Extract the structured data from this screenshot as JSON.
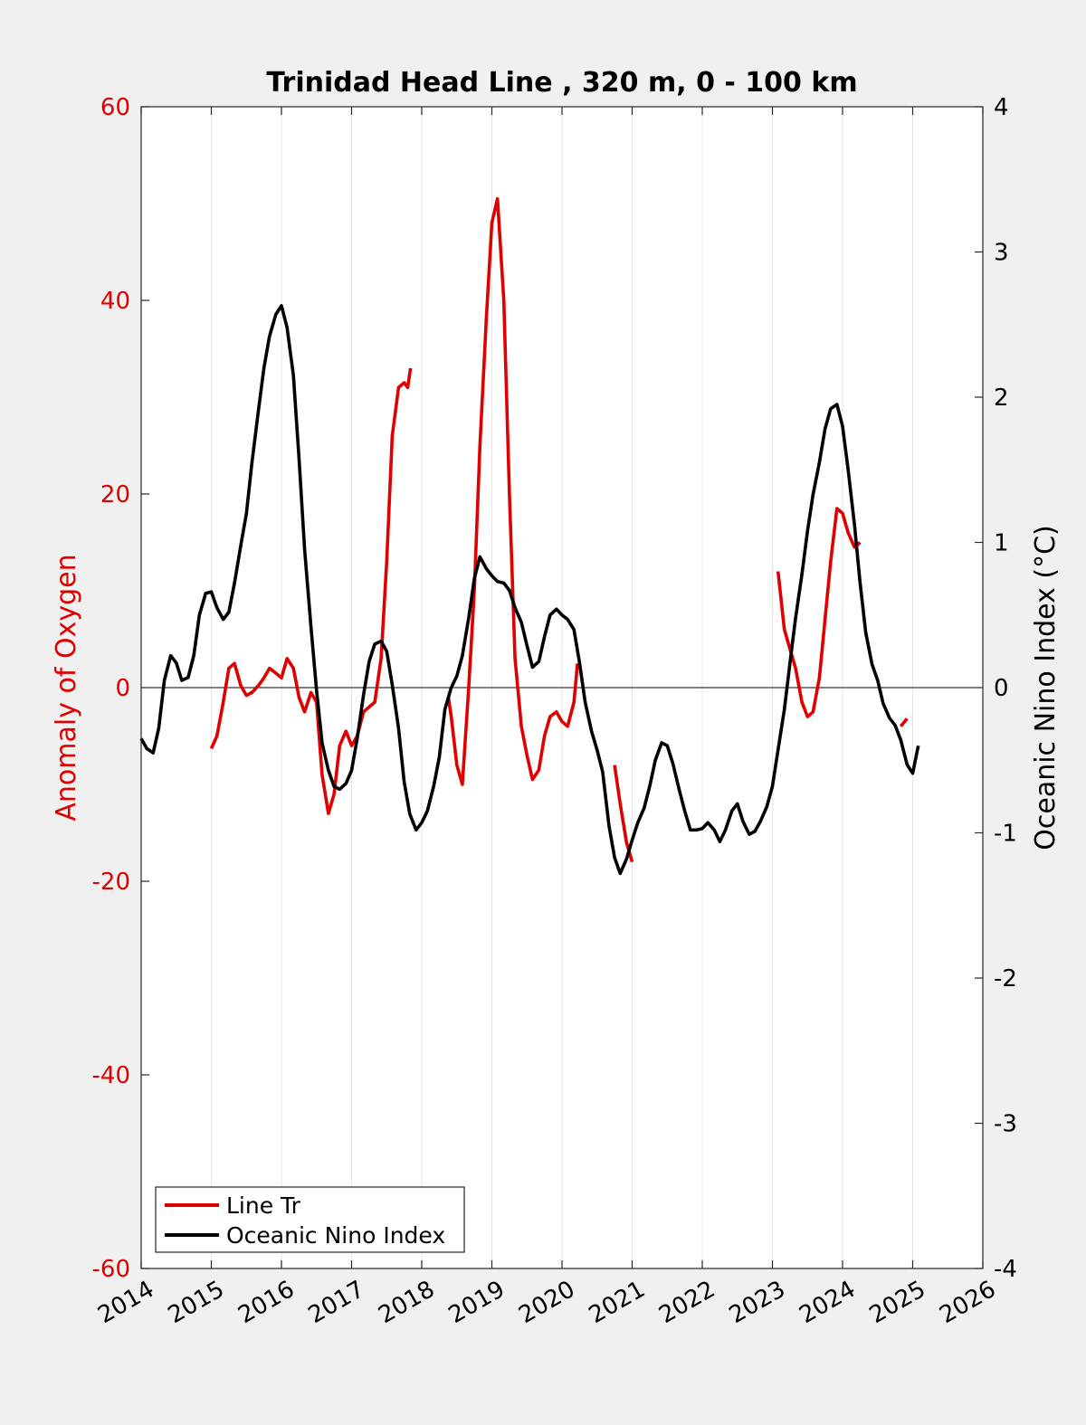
{
  "chart_data": {
    "type": "line",
    "title": "Trinidad Head Line , 320 m, 0 - 100 km",
    "xlabel": "",
    "ylabel_left": "Anomaly of Oxygen",
    "ylabel_right": "Oceanic Nino Index (°C)",
    "xlim": [
      2014,
      2026
    ],
    "ylim_left": [
      -60,
      60
    ],
    "ylim_right": [
      -4,
      4
    ],
    "x_ticks": [
      "2014",
      "2015",
      "2016",
      "2017",
      "2018",
      "2019",
      "2020",
      "2021",
      "2022",
      "2023",
      "2024",
      "2025",
      "2026"
    ],
    "y_ticks_left": [
      "-60",
      "-40",
      "-20",
      "0",
      "20",
      "40",
      "60"
    ],
    "y_ticks_right": [
      "-4",
      "-3",
      "-2",
      "-1",
      "0",
      "1",
      "2",
      "3",
      "4"
    ],
    "grid": "vertical",
    "legend_position": "bottom-left",
    "zero_line": true,
    "colors": {
      "line_tr": "#e00000",
      "oni": "#000000",
      "left_axis": "#e00000"
    },
    "series": [
      {
        "name": "Line Tr",
        "axis": "left",
        "segments": [
          [
            [
              2015.0,
              -6.3
            ],
            [
              2015.08,
              -5.0
            ],
            [
              2015.17,
              -1.5
            ],
            [
              2015.25,
              2.0
            ],
            [
              2015.33,
              2.5
            ],
            [
              2015.42,
              0.2
            ],
            [
              2015.5,
              -0.8
            ],
            [
              2015.58,
              -0.5
            ],
            [
              2015.67,
              0.2
            ],
            [
              2015.75,
              1.0
            ],
            [
              2015.83,
              2.0
            ],
            [
              2015.92,
              1.5
            ],
            [
              2016.0,
              1.0
            ],
            [
              2016.08,
              3.0
            ],
            [
              2016.17,
              2.0
            ],
            [
              2016.25,
              -1.0
            ],
            [
              2016.33,
              -2.5
            ],
            [
              2016.42,
              -0.5
            ],
            [
              2016.5,
              -1.5
            ],
            [
              2016.58,
              -9.0
            ],
            [
              2016.67,
              -13.0
            ],
            [
              2016.75,
              -11.0
            ],
            [
              2016.83,
              -6.0
            ],
            [
              2016.92,
              -4.5
            ],
            [
              2017.0,
              -6.0
            ],
            [
              2017.08,
              -5.0
            ],
            [
              2017.17,
              -2.5
            ],
            [
              2017.25,
              -2.0
            ],
            [
              2017.33,
              -1.5
            ],
            [
              2017.42,
              3.0
            ],
            [
              2017.5,
              13.0
            ],
            [
              2017.58,
              26.0
            ],
            [
              2017.67,
              31.0
            ],
            [
              2017.75,
              31.5
            ],
            [
              2017.8,
              31.0
            ],
            [
              2017.84,
              33.0
            ]
          ],
          [
            [
              2018.38,
              -1.0
            ],
            [
              2018.42,
              -3.0
            ],
            [
              2018.5,
              -8.0
            ],
            [
              2018.58,
              -10.0
            ],
            [
              2018.67,
              0.0
            ],
            [
              2018.75,
              10.0
            ],
            [
              2018.83,
              25.0
            ],
            [
              2018.92,
              38.0
            ],
            [
              2019.0,
              48.0
            ],
            [
              2019.08,
              50.5
            ],
            [
              2019.17,
              40.0
            ],
            [
              2019.25,
              20.0
            ],
            [
              2019.33,
              3.0
            ],
            [
              2019.42,
              -4.0
            ],
            [
              2019.5,
              -7.0
            ],
            [
              2019.58,
              -9.5
            ],
            [
              2019.67,
              -8.5
            ],
            [
              2019.75,
              -5.0
            ],
            [
              2019.83,
              -3.0
            ],
            [
              2019.92,
              -2.5
            ],
            [
              2020.0,
              -3.5
            ],
            [
              2020.08,
              -4.0
            ],
            [
              2020.17,
              -1.5
            ],
            [
              2020.22,
              2.5
            ]
          ],
          [
            [
              2020.75,
              -8.0
            ],
            [
              2020.83,
              -12.0
            ],
            [
              2020.92,
              -16.0
            ],
            [
              2021.0,
              -18.0
            ]
          ],
          [
            [
              2023.08,
              12.0
            ],
            [
              2023.17,
              6.0
            ],
            [
              2023.25,
              4.0
            ],
            [
              2023.33,
              2.0
            ],
            [
              2023.42,
              -1.5
            ],
            [
              2023.5,
              -3.0
            ],
            [
              2023.58,
              -2.5
            ],
            [
              2023.67,
              1.0
            ],
            [
              2023.75,
              7.0
            ],
            [
              2023.83,
              13.0
            ],
            [
              2023.92,
              18.5
            ],
            [
              2024.0,
              18.0
            ],
            [
              2024.08,
              16.0
            ],
            [
              2024.17,
              14.5
            ],
            [
              2024.25,
              15.0
            ]
          ],
          [
            [
              2024.83,
              -4.0
            ],
            [
              2024.92,
              -3.2
            ]
          ]
        ]
      },
      {
        "name": "Oceanic Nino Index",
        "axis": "right",
        "segments": [
          [
            [
              2014.0,
              -0.35
            ],
            [
              2014.08,
              -0.42
            ],
            [
              2014.17,
              -0.45
            ],
            [
              2014.25,
              -0.28
            ],
            [
              2014.33,
              0.05
            ],
            [
              2014.42,
              0.22
            ],
            [
              2014.5,
              0.17
            ],
            [
              2014.58,
              0.05
            ],
            [
              2014.67,
              0.07
            ],
            [
              2014.75,
              0.22
            ],
            [
              2014.83,
              0.5
            ],
            [
              2014.92,
              0.65
            ],
            [
              2015.0,
              0.66
            ],
            [
              2015.08,
              0.55
            ],
            [
              2015.17,
              0.47
            ],
            [
              2015.25,
              0.52
            ],
            [
              2015.33,
              0.72
            ],
            [
              2015.42,
              0.98
            ],
            [
              2015.5,
              1.2
            ],
            [
              2015.58,
              1.55
            ],
            [
              2015.67,
              1.9
            ],
            [
              2015.75,
              2.2
            ],
            [
              2015.83,
              2.42
            ],
            [
              2015.92,
              2.57
            ],
            [
              2016.0,
              2.63
            ],
            [
              2016.08,
              2.48
            ],
            [
              2016.17,
              2.15
            ],
            [
              2016.25,
              1.58
            ],
            [
              2016.33,
              0.95
            ],
            [
              2016.42,
              0.42
            ],
            [
              2016.5,
              -0.02
            ],
            [
              2016.58,
              -0.38
            ],
            [
              2016.67,
              -0.57
            ],
            [
              2016.75,
              -0.68
            ],
            [
              2016.83,
              -0.7
            ],
            [
              2016.92,
              -0.66
            ],
            [
              2017.0,
              -0.57
            ],
            [
              2017.08,
              -0.35
            ],
            [
              2017.17,
              -0.05
            ],
            [
              2017.25,
              0.18
            ],
            [
              2017.33,
              0.3
            ],
            [
              2017.42,
              0.32
            ],
            [
              2017.5,
              0.25
            ],
            [
              2017.58,
              0.02
            ],
            [
              2017.67,
              -0.28
            ],
            [
              2017.75,
              -0.65
            ],
            [
              2017.83,
              -0.87
            ],
            [
              2017.92,
              -0.98
            ],
            [
              2018.0,
              -0.93
            ],
            [
              2018.08,
              -0.85
            ],
            [
              2018.17,
              -0.68
            ],
            [
              2018.25,
              -0.48
            ],
            [
              2018.33,
              -0.15
            ],
            [
              2018.42,
              0.0
            ],
            [
              2018.5,
              0.08
            ],
            [
              2018.58,
              0.22
            ],
            [
              2018.67,
              0.48
            ],
            [
              2018.75,
              0.75
            ],
            [
              2018.83,
              0.9
            ],
            [
              2018.92,
              0.82
            ],
            [
              2019.0,
              0.77
            ],
            [
              2019.08,
              0.73
            ],
            [
              2019.17,
              0.72
            ],
            [
              2019.25,
              0.67
            ],
            [
              2019.33,
              0.55
            ],
            [
              2019.42,
              0.45
            ],
            [
              2019.5,
              0.29
            ],
            [
              2019.58,
              0.14
            ],
            [
              2019.67,
              0.18
            ],
            [
              2019.75,
              0.35
            ],
            [
              2019.83,
              0.5
            ],
            [
              2019.92,
              0.54
            ],
            [
              2020.0,
              0.5
            ],
            [
              2020.08,
              0.47
            ],
            [
              2020.17,
              0.4
            ],
            [
              2020.25,
              0.17
            ],
            [
              2020.33,
              -0.1
            ],
            [
              2020.42,
              -0.3
            ],
            [
              2020.5,
              -0.43
            ],
            [
              2020.58,
              -0.58
            ],
            [
              2020.67,
              -0.95
            ],
            [
              2020.75,
              -1.17
            ],
            [
              2020.83,
              -1.28
            ],
            [
              2020.92,
              -1.18
            ],
            [
              2021.0,
              -1.05
            ],
            [
              2021.08,
              -0.93
            ],
            [
              2021.17,
              -0.83
            ],
            [
              2021.25,
              -0.68
            ],
            [
              2021.33,
              -0.5
            ],
            [
              2021.42,
              -0.38
            ],
            [
              2021.5,
              -0.4
            ],
            [
              2021.58,
              -0.52
            ],
            [
              2021.67,
              -0.7
            ],
            [
              2021.75,
              -0.85
            ],
            [
              2021.83,
              -0.98
            ],
            [
              2021.92,
              -0.98
            ],
            [
              2022.0,
              -0.97
            ],
            [
              2022.08,
              -0.93
            ],
            [
              2022.17,
              -0.98
            ],
            [
              2022.25,
              -1.06
            ],
            [
              2022.33,
              -0.98
            ],
            [
              2022.42,
              -0.85
            ],
            [
              2022.5,
              -0.8
            ],
            [
              2022.58,
              -0.92
            ],
            [
              2022.67,
              -1.01
            ],
            [
              2022.75,
              -0.99
            ],
            [
              2022.83,
              -0.92
            ],
            [
              2022.92,
              -0.82
            ],
            [
              2023.0,
              -0.68
            ],
            [
              2023.08,
              -0.43
            ],
            [
              2023.17,
              -0.15
            ],
            [
              2023.25,
              0.17
            ],
            [
              2023.33,
              0.48
            ],
            [
              2023.42,
              0.78
            ],
            [
              2023.5,
              1.08
            ],
            [
              2023.58,
              1.33
            ],
            [
              2023.67,
              1.55
            ],
            [
              2023.75,
              1.78
            ],
            [
              2023.83,
              1.92
            ],
            [
              2023.92,
              1.95
            ],
            [
              2024.0,
              1.8
            ],
            [
              2024.08,
              1.5
            ],
            [
              2024.17,
              1.12
            ],
            [
              2024.25,
              0.72
            ],
            [
              2024.33,
              0.38
            ],
            [
              2024.42,
              0.16
            ],
            [
              2024.5,
              0.05
            ],
            [
              2024.58,
              -0.11
            ],
            [
              2024.67,
              -0.21
            ],
            [
              2024.75,
              -0.26
            ],
            [
              2024.83,
              -0.36
            ],
            [
              2024.92,
              -0.53
            ],
            [
              2025.0,
              -0.59
            ],
            [
              2025.08,
              -0.4
            ]
          ]
        ]
      }
    ]
  }
}
